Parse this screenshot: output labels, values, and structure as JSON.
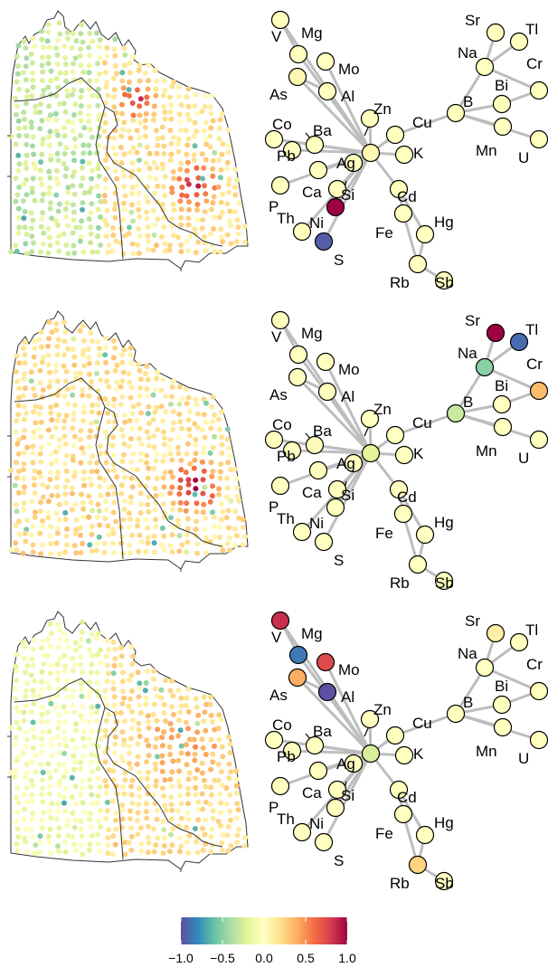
{
  "panels": [
    {
      "colors": {
        "V": 0,
        "Mg": 0,
        "Mo": 0,
        "As": 0.05,
        "Al": 0,
        "Zn": 0,
        "Co": 0,
        "Ba": 0,
        "Cu": 0,
        "Pb": 0,
        "Ag": 0,
        "K": 0,
        "P": 0,
        "Ca": 0,
        "Si": 0,
        "Cd": 0,
        "Th": 0,
        "Ni": 1.0,
        "Fe": 0,
        "Hg": 0,
        "S": -0.95,
        "Rb": 0,
        "Sb": 0,
        "hub": 0.05,
        "Sr": 0,
        "Tl": 0,
        "Na": 0,
        "Cr": 0,
        "Bi": 0,
        "B": 0,
        "Mn": 0,
        "U": 0
      },
      "map_field": {
        "hotspots": [
          {
            "name": "northern-belt",
            "value": 0.75
          },
          {
            "name": "eastern-cluster",
            "value": 0.8
          }
        ],
        "west_value": -0.3
      }
    },
    {
      "colors": {
        "V": 0,
        "Mg": 0,
        "Mo": 0,
        "As": 0,
        "Al": 0,
        "Zn": 0,
        "Co": 0,
        "Ba": 0.02,
        "Cu": 0,
        "Pb": 0,
        "Ag": 0,
        "K": 0,
        "P": 0,
        "Ca": 0,
        "Si": 0,
        "Cd": 0,
        "Th": 0,
        "Ni": 0,
        "Fe": 0,
        "Hg": 0,
        "S": 0,
        "Rb": 0,
        "Sb": 0,
        "hub": -0.2,
        "Sr": 1.0,
        "Tl": -0.9,
        "Na": -0.5,
        "Cr": 0.35,
        "Bi": 0,
        "B": -0.3,
        "Mn": 0,
        "U": 0
      },
      "map_field": {
        "hotspots": [
          {
            "name": "eastern-cluster",
            "value": 0.95
          }
        ],
        "west_value": 0.2
      }
    },
    {
      "colors": {
        "V": 0.85,
        "Mg": -0.85,
        "Mo": 0.75,
        "As": 0.4,
        "Al": -1.0,
        "Zn": 0,
        "Co": 0,
        "Ba": 0,
        "Cu": 0,
        "Pb": 0,
        "Ag": 0,
        "K": 0,
        "P": 0,
        "Ca": 0,
        "Si": 0,
        "Cd": 0,
        "Th": 0,
        "Ni": 0,
        "Fe": 0,
        "Hg": 0,
        "S": 0,
        "Rb": 0.25,
        "Sb": 0,
        "hub": -0.25,
        "Sr": 0.1,
        "Tl": 0,
        "Na": 0,
        "Cr": 0,
        "Bi": 0,
        "B": 0,
        "Mn": 0,
        "U": 0
      },
      "map_field": {
        "hotspots": [
          {
            "name": "central-band",
            "value": 0.4
          }
        ],
        "west_value": -0.1
      }
    }
  ],
  "colorbar": {
    "min": -1.0,
    "max": 1.0,
    "ticks": [
      "−1.0",
      "−0.5",
      "0.0",
      "0.5",
      "1.0"
    ],
    "tick_values": [
      -1.0,
      -0.5,
      0.0,
      0.5,
      1.0
    ],
    "palette": [
      "#5e4fa2",
      "#3288bd",
      "#66c2a5",
      "#abdda4",
      "#e6f598",
      "#ffffbf",
      "#fee08b",
      "#fdae61",
      "#f46d43",
      "#d53e4f",
      "#9e0142"
    ]
  },
  "node_outline": "#000000",
  "edge_color": "#bdbdbd"
}
